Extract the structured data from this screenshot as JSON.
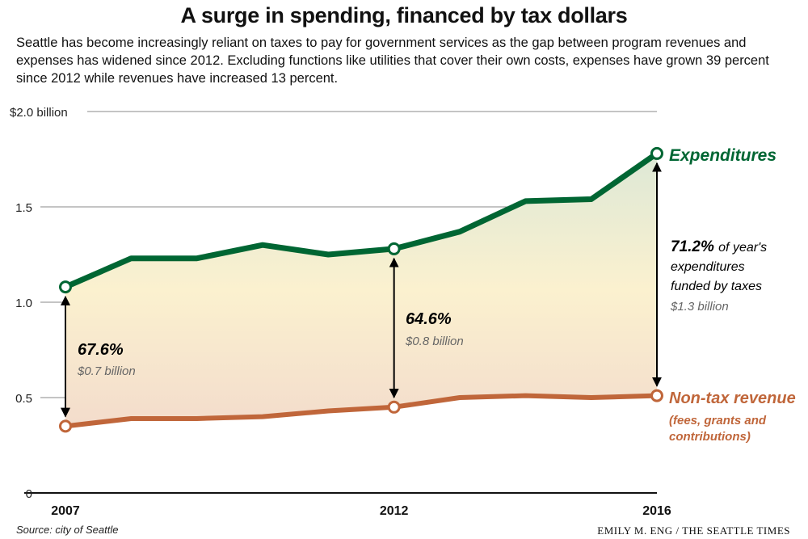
{
  "title": "A surge in spending, financed by tax dollars",
  "subtitle": "Seattle has become increasingly reliant on taxes to pay for government services as the gap between program revenues and expenses has widened since 2012. Excluding functions like utilities that cover their own costs, expenses have grown 39 percent since 2012 while revenues have increased 13 percent.",
  "source": "Source: city of Seattle",
  "credit": "EMILY M. ENG / THE SEATTLE TIMES",
  "colors": {
    "expenditures": "#006633",
    "revenue": "#c0663a",
    "annotation": "#000000",
    "grid": "#888888"
  },
  "chart_data": {
    "type": "line",
    "x": [
      2007,
      2008,
      2009,
      2010,
      2011,
      2012,
      2013,
      2014,
      2015,
      2016
    ],
    "xticks": [
      "2007",
      "2012",
      "2016"
    ],
    "yticks": [
      "0",
      "0.5",
      "1.0",
      "1.5",
      "$2.0 billion"
    ],
    "ytick_values": [
      0,
      0.5,
      1.0,
      1.5,
      2.0
    ],
    "ylim": [
      0,
      2.0
    ],
    "grid": true,
    "series": [
      {
        "name": "Expenditures",
        "values": [
          1.08,
          1.23,
          1.23,
          1.3,
          1.25,
          1.28,
          1.37,
          1.53,
          1.54,
          1.78
        ]
      },
      {
        "name": "Non-tax revenue",
        "note": "(fees, grants and contributions)",
        "values": [
          0.35,
          0.39,
          0.39,
          0.4,
          0.43,
          0.45,
          0.5,
          0.51,
          0.5,
          0.51
        ]
      }
    ],
    "annotations": [
      {
        "year": 2007,
        "percent": "67.6%",
        "amount": "$0.7 billion"
      },
      {
        "year": 2012,
        "percent": "64.6%",
        "amount": "$0.8 billion"
      },
      {
        "year": 2016,
        "percent": "71.2%",
        "text_line1": "of year's",
        "text_line2": "expenditures",
        "text_line3": "funded by taxes",
        "amount": "$1.3 billion"
      }
    ]
  }
}
